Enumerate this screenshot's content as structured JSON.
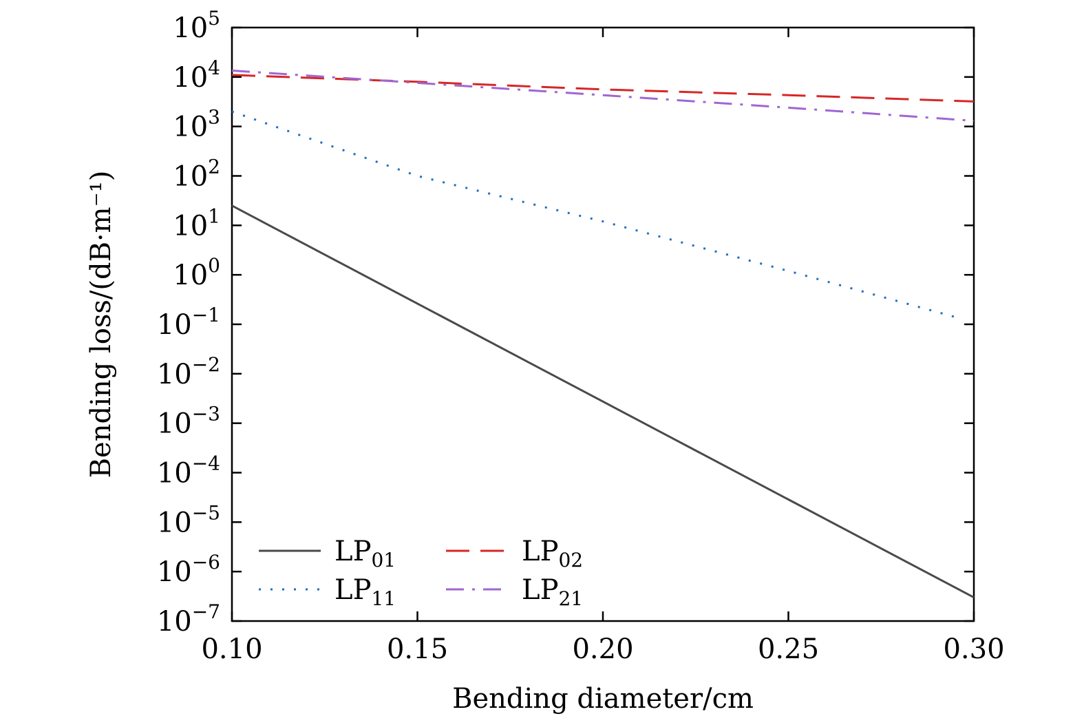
{
  "chart_data": {
    "type": "line",
    "title": "",
    "xlabel": "Bending diameter/cm",
    "ylabel": "Bending loss/(dB·m⁻¹)",
    "xlim": [
      0.1,
      0.3
    ],
    "ylim_log10": [
      -7,
      5
    ],
    "yscale": "log",
    "x_ticks": [
      "0.10",
      "0.15",
      "0.20",
      "0.25",
      "0.30"
    ],
    "y_ticks": [
      {
        "base": "10",
        "exp": "5"
      },
      {
        "base": "10",
        "exp": "4"
      },
      {
        "base": "10",
        "exp": "3"
      },
      {
        "base": "10",
        "exp": "2"
      },
      {
        "base": "10",
        "exp": "1"
      },
      {
        "base": "10",
        "exp": "0"
      },
      {
        "base": "10",
        "exp": "−1"
      },
      {
        "base": "10",
        "exp": "−2"
      },
      {
        "base": "10",
        "exp": "−3"
      },
      {
        "base": "10",
        "exp": "−4"
      },
      {
        "base": "10",
        "exp": "−5"
      },
      {
        "base": "10",
        "exp": "−6"
      },
      {
        "base": "10",
        "exp": "−7"
      }
    ],
    "legend_position": "bottom-left",
    "series": [
      {
        "name": "LP",
        "sub": "01",
        "color": "#4a4a4a",
        "style": "solid",
        "x": [
          0.1,
          0.3
        ],
        "y": [
          25,
          3e-07
        ]
      },
      {
        "name": "LP",
        "sub": "11",
        "color": "#1f6fbf",
        "style": "dotted",
        "x": [
          0.1,
          0.15,
          0.2,
          0.25,
          0.295
        ],
        "y": [
          2000,
          100,
          12,
          1.2,
          0.14
        ]
      },
      {
        "name": "LP",
        "sub": "02",
        "color": "#d62728",
        "style": "dashed",
        "x": [
          0.1,
          0.15,
          0.2,
          0.25,
          0.3
        ],
        "y": [
          11000,
          8000,
          5600,
          4300,
          3200
        ]
      },
      {
        "name": "LP",
        "sub": "21",
        "color": "#a066d3",
        "style": "dashdot",
        "x": [
          0.1,
          0.15,
          0.2,
          0.25,
          0.3
        ],
        "y": [
          13500,
          7600,
          4300,
          2400,
          1300
        ]
      }
    ]
  }
}
